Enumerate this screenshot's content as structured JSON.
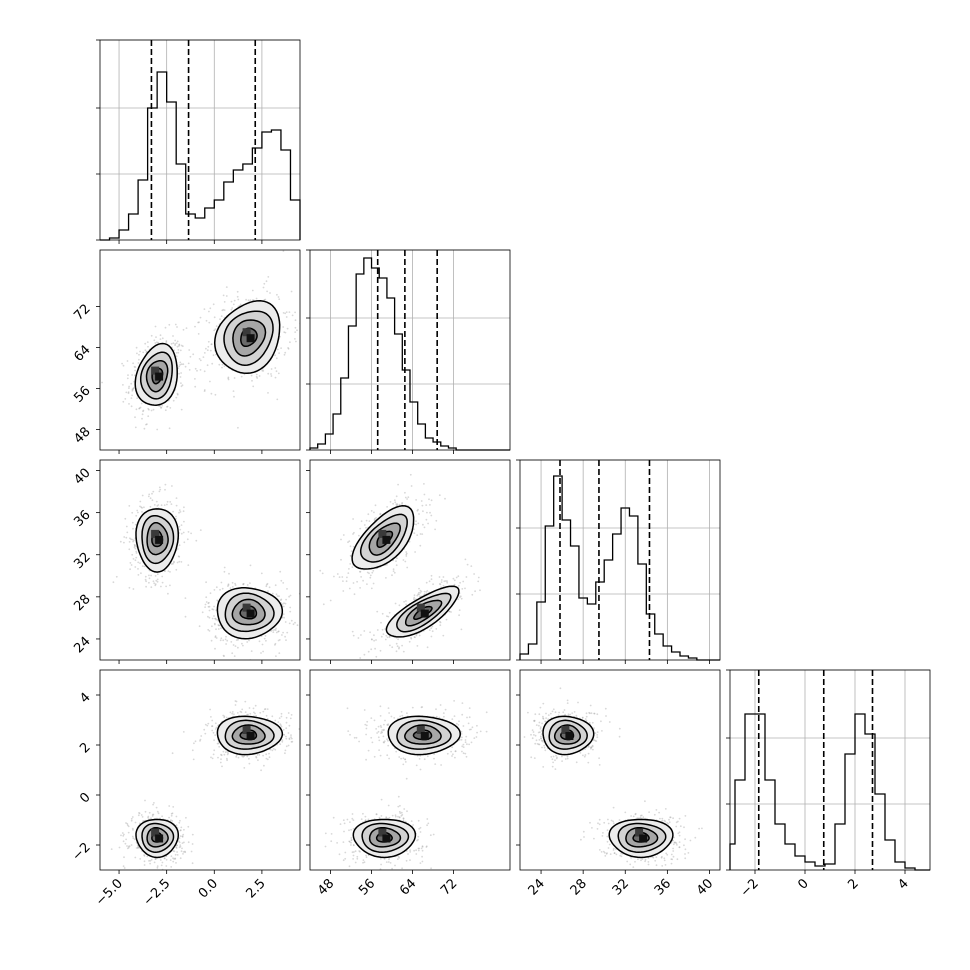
{
  "chart_data": {
    "type": "corner-plot",
    "n_params": 4,
    "grid": true,
    "params": [
      {
        "lim": [
          -6,
          4.5
        ],
        "ticks": [
          -5.0,
          -2.5,
          0.0,
          2.5
        ],
        "tick_labels": [
          "−5.0",
          "−2.5",
          "0.0",
          "2.5"
        ]
      },
      {
        "lim": [
          44,
          83
        ],
        "ticks": [
          48,
          56,
          64,
          72
        ],
        "tick_labels": [
          "48",
          "56",
          "64",
          "72"
        ]
      },
      {
        "lim": [
          22,
          41
        ],
        "ticks": [
          24,
          28,
          32,
          36,
          40
        ],
        "tick_labels": [
          "24",
          "28",
          "32",
          "36",
          "40"
        ]
      },
      {
        "lim": [
          -3,
          5
        ],
        "ticks": [
          -2,
          0,
          2,
          4
        ],
        "tick_labels": [
          "−2",
          "0",
          "2",
          "4"
        ]
      }
    ],
    "histograms": [
      {
        "param": 0,
        "ymax": 1,
        "bin_start": -6,
        "bin_width": 0.5,
        "values": [
          0.0,
          0.01,
          0.05,
          0.13,
          0.3,
          0.66,
          0.84,
          0.69,
          0.38,
          0.13,
          0.11,
          0.16,
          0.2,
          0.29,
          0.35,
          0.38,
          0.46,
          0.54,
          0.55,
          0.45,
          0.2,
          0.05,
          0.0
        ],
        "quantiles": [
          -3.3,
          -1.35,
          2.15
        ]
      },
      {
        "param": 1,
        "ymax": 1,
        "bin_start": 44,
        "bin_width": 1.5,
        "values": [
          0.01,
          0.03,
          0.08,
          0.18,
          0.36,
          0.62,
          0.88,
          0.96,
          0.91,
          0.86,
          0.76,
          0.58,
          0.4,
          0.24,
          0.13,
          0.06,
          0.04,
          0.02,
          0.01,
          0.0,
          0.0,
          0.0,
          0.0,
          0.0,
          0.0,
          0.0
        ],
        "quantiles": [
          57.2,
          62.5,
          68.8
        ]
      },
      {
        "param": 2,
        "ymax": 1,
        "bin_start": 22,
        "bin_width": 0.8,
        "values": [
          0.03,
          0.08,
          0.29,
          0.67,
          0.92,
          0.7,
          0.57,
          0.31,
          0.28,
          0.39,
          0.5,
          0.63,
          0.76,
          0.72,
          0.48,
          0.23,
          0.13,
          0.07,
          0.04,
          0.02,
          0.01,
          0.0,
          0.0,
          0.0
        ],
        "quantiles": [
          25.8,
          29.5,
          34.3
        ]
      },
      {
        "param": 3,
        "ymax": 1,
        "bin_start": -3.2,
        "bin_width": 0.4,
        "values": [
          0.13,
          0.45,
          0.78,
          0.78,
          0.45,
          0.23,
          0.13,
          0.07,
          0.04,
          0.02,
          0.03,
          0.23,
          0.58,
          0.78,
          0.68,
          0.38,
          0.15,
          0.04,
          0.01,
          0.0,
          0.0
        ],
        "quantiles": [
          -1.85,
          0.75,
          2.7
        ]
      }
    ],
    "modes": [
      {
        "center": [
          -3.0,
          58.5,
          33.5,
          -1.7
        ],
        "sd": [
          0.55,
          3.0,
          1.5,
          0.38
        ],
        "weight": 0.5
      },
      {
        "center": [
          1.8,
          66.0,
          26.5,
          2.4
        ],
        "sd": [
          0.85,
          3.5,
          1.2,
          0.38
        ],
        "weight": 0.5
      }
    ],
    "correlations": {
      "0-1": 0.2,
      "0-2": 0.0,
      "0-3": 0.0,
      "1-2": 0.75,
      "1-3": 0.0,
      "2-3": 0.0
    },
    "contour_levels_sigma": [
      0.5,
      1.0,
      1.5,
      2.0
    ]
  }
}
